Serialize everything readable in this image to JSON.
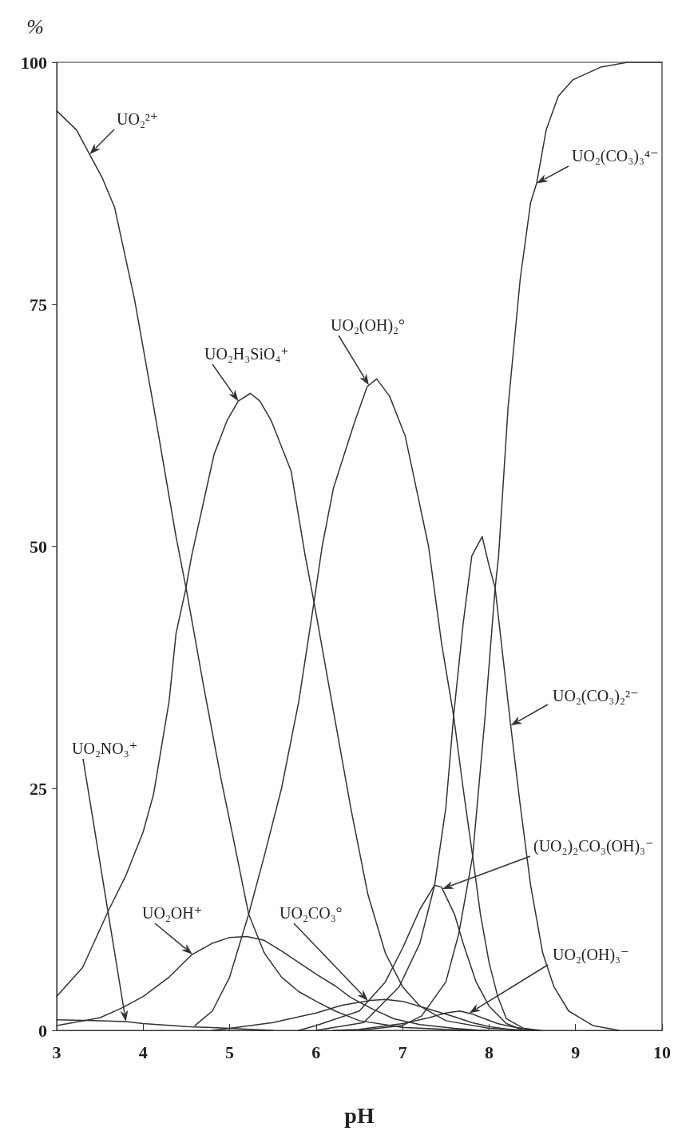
{
  "chart_data": {
    "type": "line",
    "xlabel": "pH",
    "ylabel": "%",
    "xlim": [
      3,
      10
    ],
    "ylim": [
      0,
      100
    ],
    "xticks": [
      3,
      4,
      5,
      6,
      7,
      8,
      9,
      10
    ],
    "yticks": [
      0,
      25,
      50,
      75,
      100
    ],
    "marker": "none",
    "line_style": "solid",
    "series": [
      {
        "name": "UO₂²⁺",
        "color": "#333333",
        "x": [
          3,
          3.23,
          3.53,
          3.67,
          3.9,
          4.12,
          4.38,
          4.5,
          4.7,
          4.9,
          5.05,
          5.22,
          5.4,
          5.6,
          5.8,
          6,
          6.22,
          6.5,
          7,
          7.5,
          8
        ],
        "values": [
          95,
          93,
          88,
          85,
          75.5,
          64.5,
          51,
          45.5,
          35.5,
          26,
          19.5,
          12,
          8,
          5.5,
          4,
          3,
          2,
          1,
          0.3,
          0.1,
          0
        ]
      },
      {
        "name": "UO₂H₃SiO₄⁺",
        "color": "#333333",
        "x": [
          3,
          3.3,
          3.6,
          3.8,
          4,
          4.12,
          4.3,
          4.38,
          4.49,
          4.56,
          4.82,
          4.97,
          5.1,
          5.24,
          5.35,
          5.48,
          5.71,
          5.87,
          5.98,
          6.2,
          6.4,
          6.6,
          6.8,
          7,
          7.2,
          7.5,
          8,
          8.5
        ],
        "values": [
          3.5,
          6.5,
          12.4,
          16,
          20.5,
          24.4,
          34,
          41,
          45.5,
          49,
          59.5,
          63,
          65,
          65.8,
          65,
          63,
          57.8,
          49.2,
          44,
          33,
          23,
          14,
          8,
          4.5,
          2.5,
          1,
          0.2,
          0
        ]
      },
      {
        "name": "UO₂(OH)₂°",
        "color": "#333333",
        "x": [
          4.6,
          4.8,
          5,
          5.22,
          5.4,
          5.6,
          5.8,
          5.98,
          6.07,
          6.2,
          6.44,
          6.59,
          6.7,
          6.85,
          7.03,
          7.3,
          7.45,
          7.59,
          7.7,
          7.81,
          7.9,
          8,
          8.1,
          8.2,
          8.4,
          8.6
        ],
        "values": [
          0.5,
          2,
          5.5,
          12,
          18,
          25,
          34,
          44.5,
          50,
          56,
          62.7,
          66.5,
          67.3,
          65.5,
          61.4,
          50,
          40,
          32.5,
          25,
          18,
          12,
          7,
          3.5,
          1.2,
          0.2,
          0
        ]
      },
      {
        "name": "UO₂(CO₃)₃⁴⁻",
        "color": "#333333",
        "x": [
          6.5,
          7,
          7.22,
          7.5,
          7.65,
          7.81,
          7.95,
          8.07,
          8.11,
          8.22,
          8.36,
          8.48,
          8.55,
          8.66,
          8.8,
          8.97,
          9.29,
          9.6,
          10
        ],
        "values": [
          0,
          0.5,
          1.5,
          5,
          10,
          18,
          32,
          45.7,
          49,
          64.4,
          77.6,
          85.5,
          87.5,
          93,
          96.5,
          98.2,
          99.5,
          100,
          100
        ]
      },
      {
        "name": "UO₂(CO₃)₂²⁻",
        "color": "#333333",
        "x": [
          6,
          6.55,
          6.96,
          7.2,
          7.37,
          7.5,
          7.59,
          7.7,
          7.8,
          7.92,
          8,
          8.07,
          8.25,
          8.35,
          8.48,
          8.62,
          8.75,
          8.92,
          9.2,
          9.5
        ],
        "values": [
          0,
          0.8,
          4.5,
          9,
          15,
          23,
          32.5,
          42,
          49,
          51,
          48,
          45.7,
          31.5,
          24,
          15,
          8,
          4.5,
          2,
          0.5,
          0
        ]
      },
      {
        "name": "(UO₂)₂CO₃(OH)₃⁻",
        "color": "#333333",
        "x": [
          5.8,
          6,
          6.5,
          6.8,
          7,
          7.2,
          7.37,
          7.45,
          7.6,
          7.7,
          7.85,
          8,
          8.2,
          8.4
        ],
        "values": [
          0,
          0.5,
          2,
          5,
          8.5,
          12.5,
          15,
          14.8,
          12,
          9,
          5,
          2.5,
          0.7,
          0
        ]
      },
      {
        "name": "UO₂(OH)₃⁻",
        "color": "#333333",
        "x": [
          6.2,
          6.5,
          7,
          7.3,
          7.5,
          7.66,
          7.8,
          7.95,
          8.1,
          8.3,
          8.55
        ],
        "values": [
          0,
          0.1,
          0.7,
          1.3,
          1.8,
          2,
          1.7,
          1.2,
          0.7,
          0.3,
          0
        ]
      },
      {
        "name": "UO₂NO₃⁺",
        "color": "#333333",
        "x": [
          3,
          3.5,
          3.8,
          4,
          4.5,
          5,
          5.5
        ],
        "values": [
          1.1,
          1,
          0.9,
          0.7,
          0.4,
          0.2,
          0
        ]
      },
      {
        "name": "UO₂OH⁺",
        "color": "#333333",
        "x": [
          3,
          3.5,
          3.75,
          4,
          4.3,
          4.56,
          4.8,
          5,
          5.2,
          5.4,
          5.6,
          5.8,
          6,
          6.22,
          6.4,
          6.63,
          6.9,
          7.2,
          7.6,
          7.9
        ],
        "values": [
          0.5,
          1.3,
          2.3,
          3.5,
          5.5,
          7.8,
          9,
          9.6,
          9.7,
          9.3,
          8.2,
          7,
          5.8,
          4.6,
          3.4,
          2.3,
          1.2,
          0.6,
          0.2,
          0
        ]
      },
      {
        "name": "UO₂CO₃°",
        "color": "#333333",
        "x": [
          4.8,
          5,
          5.5,
          6,
          6.3,
          6.63,
          6.8,
          7,
          7.3,
          7.6,
          7.8,
          8,
          8.3
        ],
        "values": [
          0,
          0.2,
          0.8,
          1.8,
          2.6,
          3.1,
          3.2,
          3,
          2.2,
          1.4,
          0.8,
          0.4,
          0
        ]
      }
    ]
  }
}
